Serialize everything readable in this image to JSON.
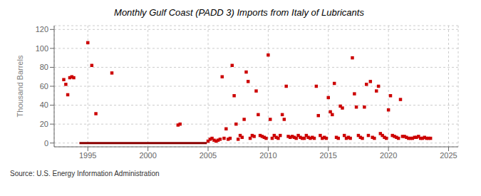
{
  "chart_data": {
    "type": "scatter",
    "title": "Monthly Gulf Coast (PADD 3) Imports from Italy of Lubricants",
    "ylabel": "Thousand Barrels",
    "annotations": [
      "Source: U.S. Energy Information Administration"
    ],
    "xlim": [
      1992.2,
      2025.8
    ],
    "ylim": [
      -4,
      124
    ],
    "xticks": [
      1995,
      2000,
      2005,
      2010,
      2015,
      2020,
      2025
    ],
    "yticks": [
      0,
      20,
      40,
      60,
      80,
      100,
      120
    ],
    "grid": true,
    "series": [
      {
        "type": "line",
        "color": "#8b0000",
        "x": [
          1994.3,
          2004.9
        ],
        "values": [
          0,
          0
        ]
      },
      {
        "type": "scatter",
        "color": "#cc0000",
        "marker": "square",
        "x": [
          1993.0,
          1993.17,
          1993.33,
          1993.5,
          1993.67,
          1993.83,
          1995.0,
          1995.33,
          1995.67,
          1997.0,
          2002.5,
          2002.67,
          2005.0,
          2005.17,
          2005.33,
          2005.5,
          2005.67,
          2005.83,
          2006.0,
          2006.17,
          2006.33,
          2006.5,
          2006.67,
          2006.83,
          2007.0,
          2007.17,
          2007.33,
          2007.5,
          2007.67,
          2007.83,
          2008.0,
          2008.17,
          2008.33,
          2008.5,
          2008.67,
          2008.83,
          2009.0,
          2009.17,
          2009.33,
          2009.5,
          2009.67,
          2009.83,
          2010.0,
          2010.17,
          2010.33,
          2010.5,
          2010.67,
          2010.83,
          2011.0,
          2011.17,
          2011.33,
          2011.5,
          2011.67,
          2011.83,
          2012.0,
          2012.17,
          2012.33,
          2012.5,
          2012.67,
          2012.83,
          2013.0,
          2013.17,
          2013.33,
          2013.5,
          2013.67,
          2013.83,
          2014.0,
          2014.17,
          2014.33,
          2014.5,
          2014.67,
          2014.83,
          2015.0,
          2015.17,
          2015.33,
          2015.5,
          2015.67,
          2015.83,
          2016.0,
          2016.17,
          2016.33,
          2016.5,
          2016.67,
          2016.83,
          2017.0,
          2017.17,
          2017.33,
          2017.5,
          2017.67,
          2017.83,
          2018.0,
          2018.17,
          2018.33,
          2018.5,
          2018.67,
          2018.83,
          2019.0,
          2019.17,
          2019.33,
          2019.5,
          2019.67,
          2019.83,
          2020.0,
          2020.17,
          2020.33,
          2020.5,
          2020.67,
          2020.83,
          2021.0,
          2021.17,
          2021.33,
          2021.5,
          2021.67,
          2021.83,
          2022.0,
          2022.17,
          2022.33,
          2022.5,
          2022.67,
          2022.83,
          2023.0,
          2023.17,
          2023.33,
          2023.5
        ],
        "values": [
          67,
          62,
          51,
          69,
          70,
          69,
          106,
          82,
          31,
          74,
          19,
          20,
          2,
          4,
          5,
          3,
          2,
          3,
          4,
          70,
          5,
          15,
          4,
          5,
          82,
          50,
          20,
          4,
          8,
          6,
          25,
          75,
          65,
          5,
          8,
          7,
          55,
          30,
          8,
          7,
          6,
          5,
          93,
          25,
          5,
          8,
          6,
          5,
          8,
          30,
          25,
          60,
          7,
          6,
          7,
          6,
          5,
          8,
          6,
          5,
          5,
          8,
          6,
          5,
          6,
          5,
          60,
          29,
          8,
          5,
          6,
          5,
          48,
          33,
          30,
          63,
          6,
          5,
          39,
          37,
          8,
          5,
          6,
          5,
          90,
          52,
          38,
          8,
          6,
          5,
          38,
          62,
          8,
          65,
          6,
          5,
          55,
          60,
          10,
          8,
          6,
          5,
          35,
          50,
          8,
          7,
          6,
          5,
          46,
          7,
          7,
          6,
          5,
          5,
          5,
          6,
          6,
          7,
          5,
          5,
          6,
          5,
          5,
          5
        ]
      }
    ]
  }
}
